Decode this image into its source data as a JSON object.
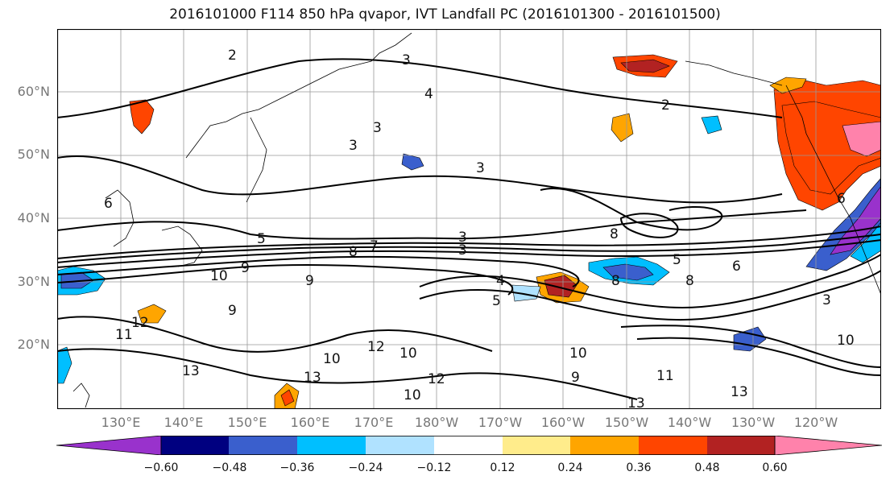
{
  "title": "2016101000 F114 850 hPa qvapor, IVT Landfall PC (2016101300 - 2016101500)",
  "lat_labels": [
    "60°N",
    "50°N",
    "40°N",
    "30°N",
    "20°N"
  ],
  "lon_labels": [
    "130°E",
    "140°E",
    "150°E",
    "160°E",
    "170°E",
    "180°W",
    "170°W",
    "160°W",
    "150°W",
    "140°W",
    "130°W",
    "120°W"
  ],
  "colorbar": {
    "colors": [
      "#9932cc",
      "#000080",
      "#3a5fcd",
      "#00bfff",
      "#b0e2ff",
      "#ffffff",
      "#ffec8b",
      "#ffa500",
      "#ff4500",
      "#b22222",
      "#ff82ab"
    ],
    "tick_labels": [
      "−0.60",
      "−0.48",
      "−0.36",
      "−0.24",
      "−0.12",
      "0.12",
      "0.24",
      "0.36",
      "0.48",
      "0.60"
    ]
  },
  "contour_labels": [
    "2",
    "3",
    "4",
    "3",
    "2",
    "3",
    "3",
    "6",
    "5",
    "7",
    "8",
    "3",
    "3",
    "9",
    "10",
    "9",
    "9",
    "11",
    "12",
    "13",
    "10",
    "10",
    "12",
    "12",
    "13",
    "10",
    "4",
    "5",
    "8",
    "5",
    "6",
    "8",
    "8",
    "6",
    "3",
    "10",
    "9",
    "11",
    "13",
    "13",
    "10"
  ]
}
